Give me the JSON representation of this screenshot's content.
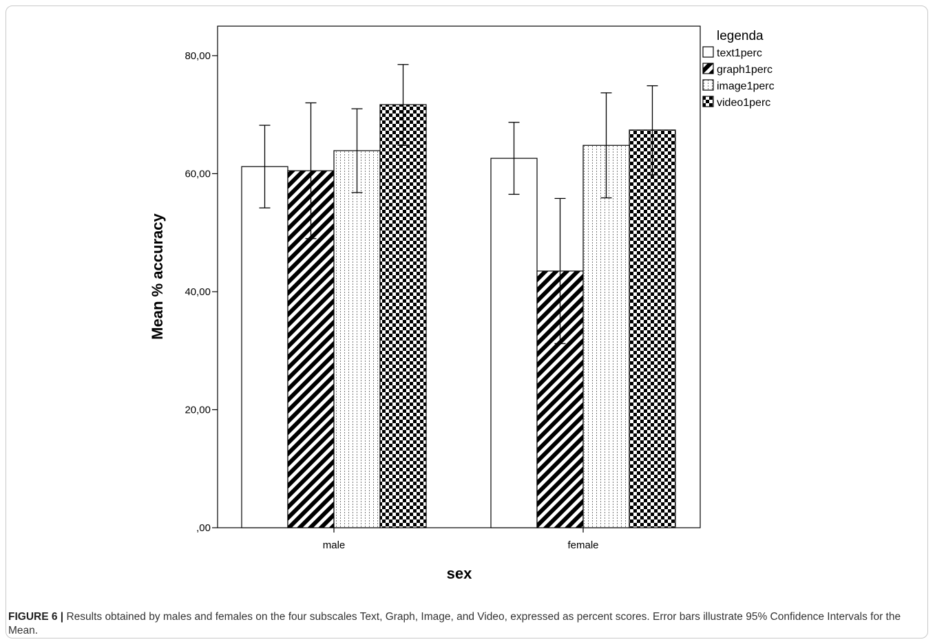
{
  "chart_data": {
    "type": "bar",
    "categories": [
      "male",
      "female"
    ],
    "series": [
      {
        "name": "text1perc",
        "values": [
          61.2,
          62.6
        ],
        "ci_low": [
          54.2,
          56.5
        ],
        "ci_high": [
          68.2,
          68.7
        ],
        "pattern": "plain"
      },
      {
        "name": "graph1perc",
        "values": [
          60.5,
          43.5
        ],
        "ci_low": [
          49.0,
          31.2
        ],
        "ci_high": [
          72.0,
          55.8
        ],
        "pattern": "diagonal"
      },
      {
        "name": "image1perc",
        "values": [
          63.9,
          64.8
        ],
        "ci_low": [
          56.8,
          55.9
        ],
        "ci_high": [
          71.0,
          73.7
        ],
        "pattern": "dotted"
      },
      {
        "name": "video1perc",
        "values": [
          71.7,
          67.4
        ],
        "ci_low": [
          64.8,
          59.8
        ],
        "ci_high": [
          78.5,
          74.9
        ],
        "pattern": "checker"
      }
    ],
    "xlabel": "sex",
    "ylabel": "Mean % accuracy",
    "ylim": [
      0,
      85
    ],
    "yticks": [
      0,
      20,
      40,
      60,
      80
    ],
    "ytick_labels": [
      ",00",
      "20,00",
      "40,00",
      "60,00",
      "80,00"
    ],
    "legend_title": "legenda",
    "legend_position": "top-right",
    "grid": false
  },
  "caption": {
    "label": "FIGURE 6 |",
    "text": " Results obtained by males and females on the four subscales Text, Graph, Image, and Video, expressed as percent scores. Error bars illustrate 95% Confidence Intervals for the Mean."
  }
}
